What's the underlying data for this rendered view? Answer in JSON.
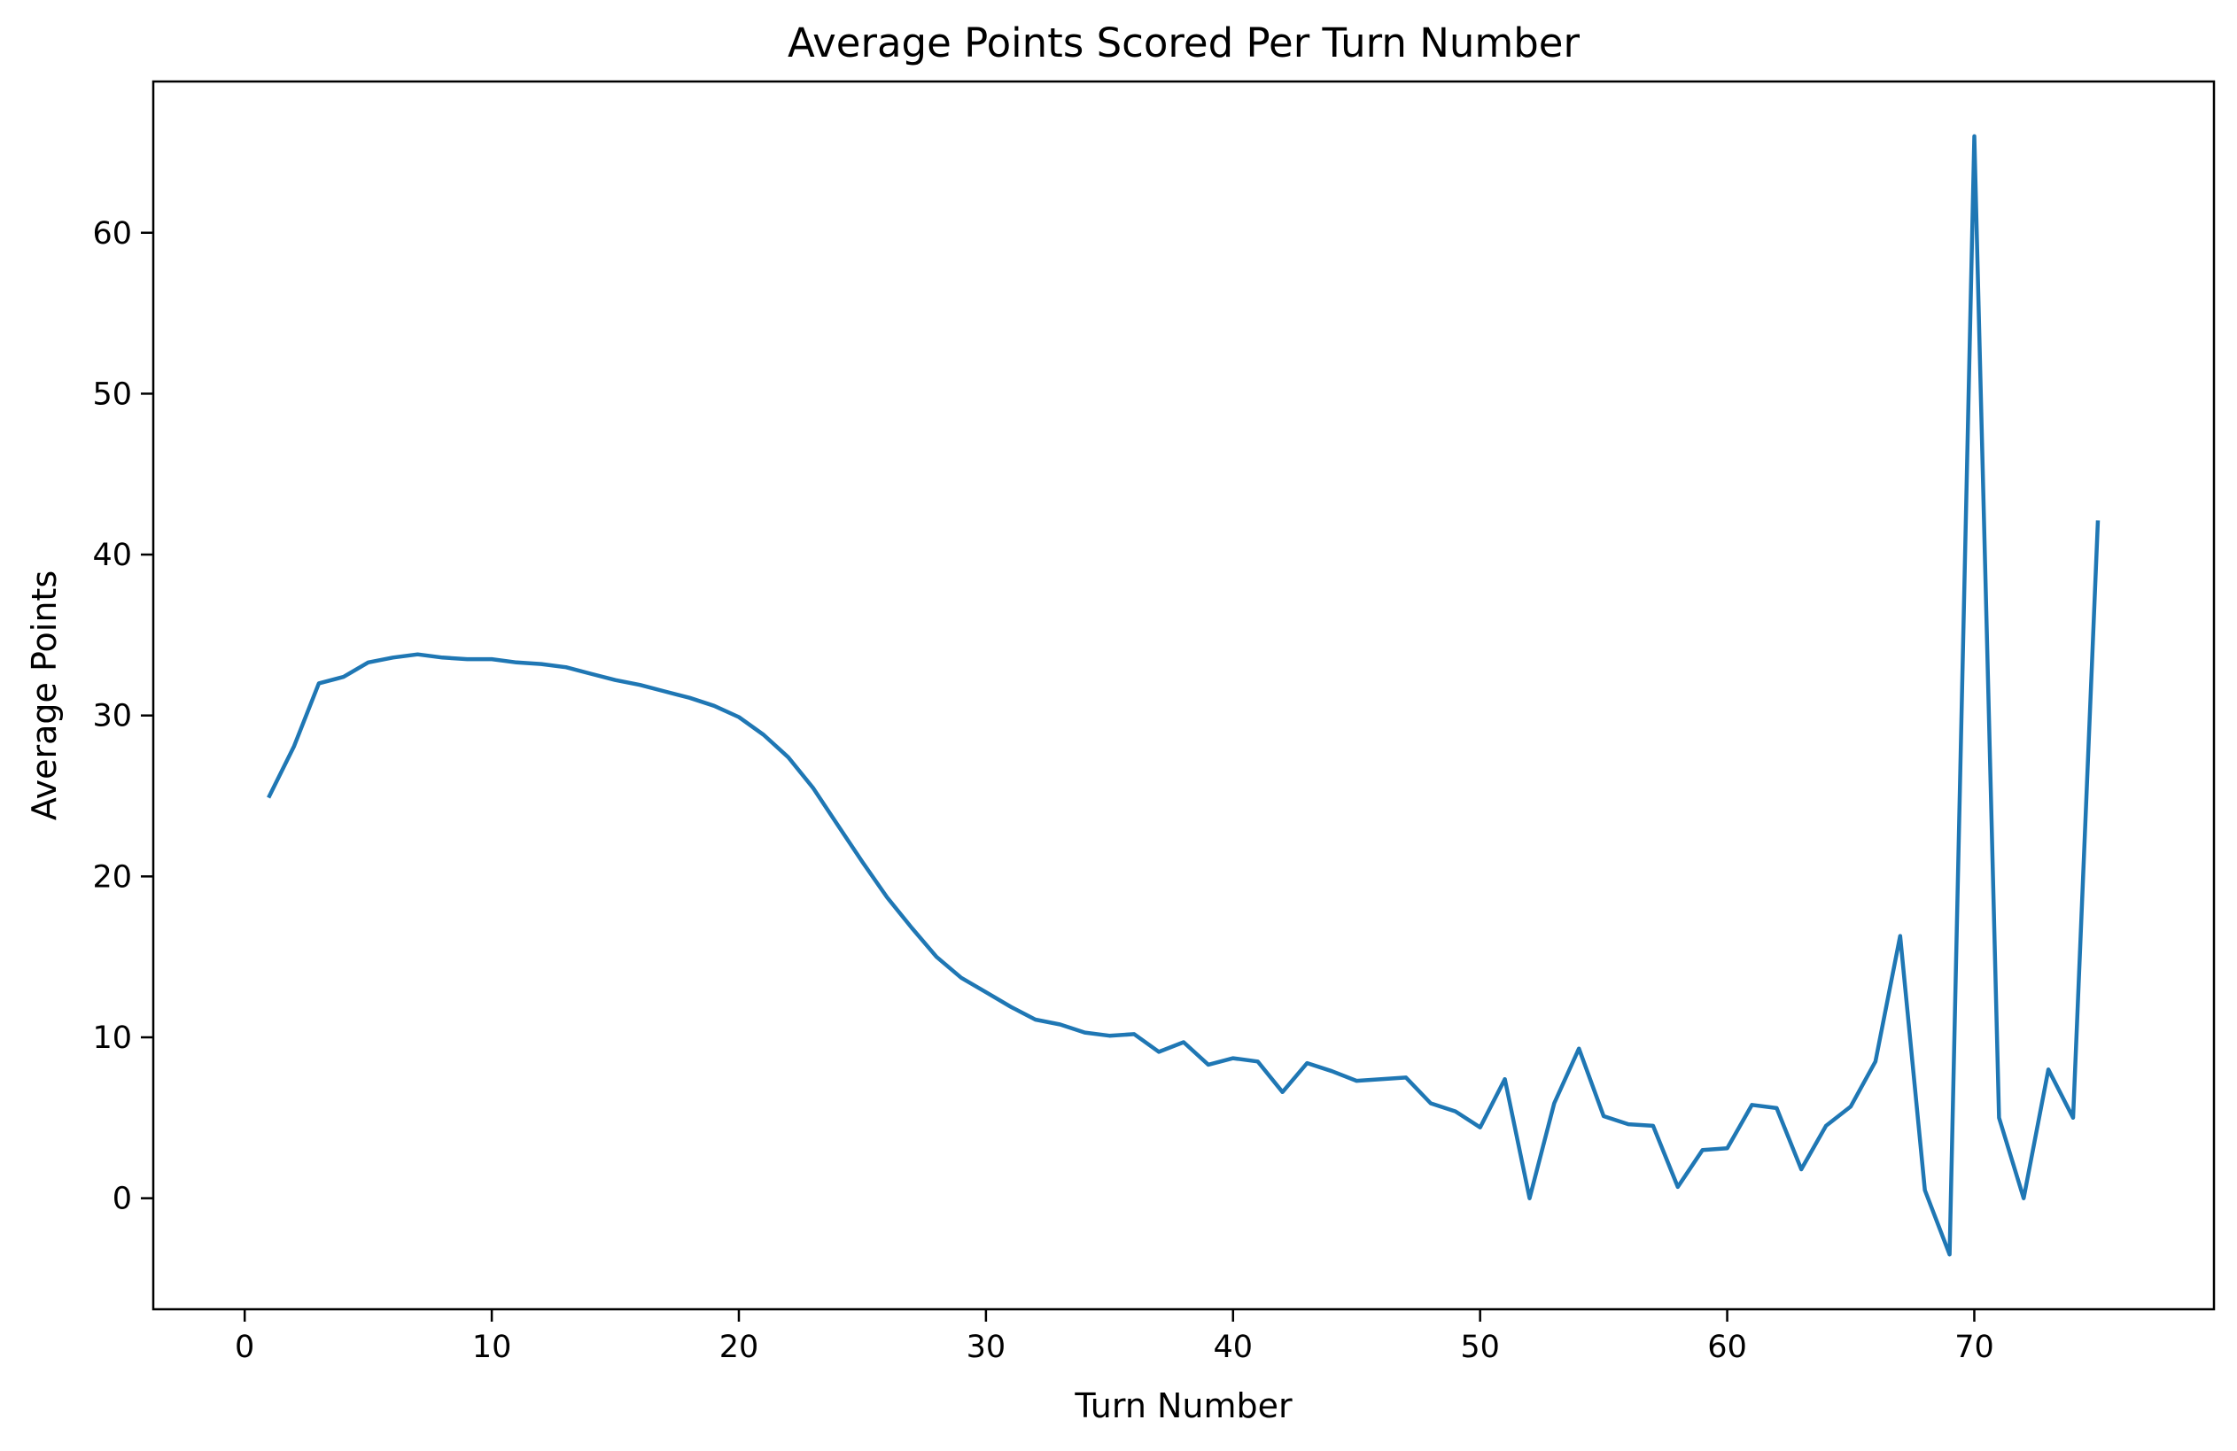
{
  "chart_data": {
    "type": "line",
    "title": "Average Points Scored Per Turn Number",
    "xlabel": "Turn Number",
    "ylabel": "Average Points",
    "xlim": [
      -3.7,
      79.7
    ],
    "ylim": [
      -6.9,
      69.4
    ],
    "xticks": [
      0,
      10,
      20,
      30,
      40,
      50,
      60,
      70
    ],
    "yticks": [
      0,
      10,
      20,
      30,
      40,
      50,
      60
    ],
    "grid": false,
    "legend": "none",
    "series": [
      {
        "color": "#1f77b4",
        "x": [
          1,
          2,
          3,
          4,
          5,
          6,
          7,
          8,
          9,
          10,
          11,
          12,
          13,
          14,
          15,
          16,
          17,
          18,
          19,
          20,
          21,
          22,
          23,
          24,
          25,
          26,
          27,
          28,
          29,
          30,
          31,
          32,
          33,
          34,
          35,
          36,
          37,
          38,
          39,
          40,
          41,
          42,
          43,
          44,
          45,
          46,
          47,
          48,
          49,
          50,
          51,
          52,
          53,
          54,
          55,
          56,
          57,
          58,
          59,
          60,
          61,
          62,
          63,
          64,
          65,
          66,
          67,
          68,
          69,
          70,
          71,
          72,
          73,
          74,
          75
        ],
        "values": [
          25.0,
          28.1,
          32.0,
          32.4,
          33.3,
          33.6,
          33.8,
          33.6,
          33.5,
          33.5,
          33.3,
          33.2,
          33.0,
          32.6,
          32.2,
          31.9,
          31.5,
          31.1,
          30.6,
          29.9,
          28.8,
          27.4,
          25.5,
          23.2,
          20.9,
          18.7,
          16.8,
          15.0,
          13.7,
          12.8,
          11.9,
          11.1,
          10.8,
          10.3,
          10.1,
          10.2,
          9.1,
          9.7,
          8.3,
          8.7,
          8.5,
          6.6,
          8.4,
          7.9,
          7.3,
          7.4,
          7.5,
          5.9,
          5.4,
          4.4,
          7.4,
          0.0,
          5.9,
          9.3,
          5.1,
          4.6,
          4.5,
          0.7,
          3.0,
          3.1,
          5.8,
          5.6,
          1.8,
          4.5,
          5.7,
          8.5,
          16.3,
          0.5,
          -3.5,
          66.0,
          5.0,
          0.0,
          8.0,
          5.0,
          42.0
        ]
      }
    ]
  }
}
